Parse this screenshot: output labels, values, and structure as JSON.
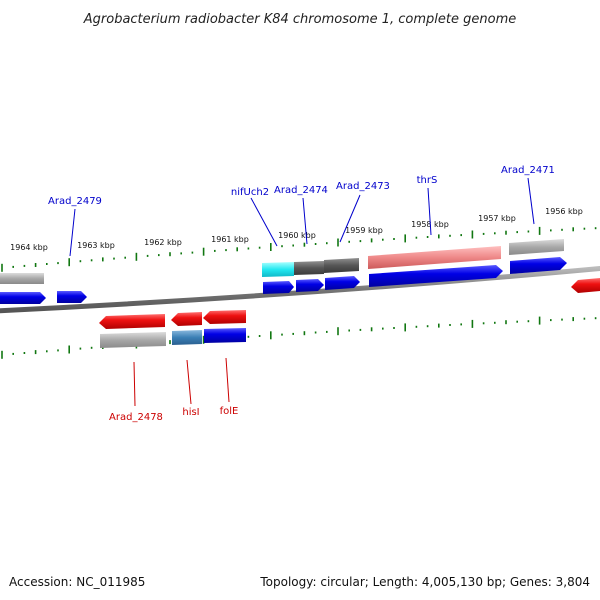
{
  "title": "Agrobacterium radiobacter K84 chromosome 1, complete genome",
  "footer": {
    "accession": "Accession: NC_011985",
    "summary": "Topology: circular; Length: 4,005,130 bp; Genes: 3,804"
  },
  "kbp_ticks": [
    "1964 kbp",
    "1963 kbp",
    "1962 kbp",
    "1961 kbp",
    "1960 kbp",
    "1959 kbp",
    "1958 kbp",
    "1957 kbp",
    "1956 kbp"
  ],
  "top_gene_labels": [
    "Arad_2479",
    "nifUch2",
    "Arad_2474",
    "Arad_2473",
    "thrS",
    "Arad_2471"
  ],
  "bottom_gene_labels": [
    "Arad_2478",
    "hisI",
    "folE"
  ],
  "colors": {
    "forward_label": "#0000cc",
    "reverse_label": "#cc0000",
    "cds_blue": "#0000e0",
    "gene_red": "#ee1111",
    "pseudo_gray": "#a8a8a8",
    "dark_gray": "#555555",
    "cyan": "#22e8f0",
    "steel_blue": "#3a7fb5",
    "salmon": "#ee8888",
    "tick_green": "#117711",
    "backbone": "#777777"
  }
}
